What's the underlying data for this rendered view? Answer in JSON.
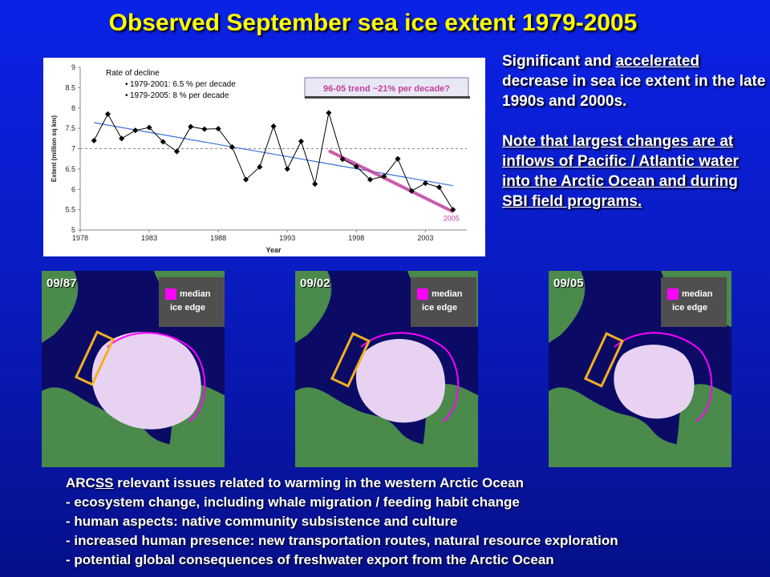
{
  "slide": {
    "title": "Observed September sea ice extent 1979-2005",
    "right_text": {
      "p1_a": "Significant and ",
      "p1_underlined": "accelerated",
      "p1_b": " decrease in sea ice extent in the late 1990s and 2000s.",
      "p2": "Note that largest changes are at inflows of Pacific / Atlantic water into the Arctic Ocean and during SBI field programs."
    },
    "maps": [
      {
        "label": "09/87",
        "legend_line1": "median",
        "legend_line2": "ice edge"
      },
      {
        "label": "09/02",
        "legend_line1": "median",
        "legend_line2": "ice edge"
      },
      {
        "label": "09/05",
        "legend_line1": "median",
        "legend_line2": "ice edge"
      }
    ],
    "bottom": {
      "heading_a": "ARC",
      "heading_ul": "SS",
      "heading_b": " relevant issues related to warming in the western Arctic Ocean",
      "items": [
        "- ecosystem change, including whale migration / feeding habit change",
        "- human aspects: native community subsistence and culture",
        "- increased human presence: new transportation routes, natural resource exploration",
        "- potential global consequences of freshwater export from the Arctic Ocean"
      ]
    },
    "colors": {
      "title": "#ffff00",
      "median_edge": "#ff00ff",
      "ice": "#e8d2f2",
      "land": "#4a8a4a",
      "ocean": "#0b0b66",
      "box": "#f2b01e"
    }
  },
  "chart_data": {
    "type": "line",
    "xlabel": "Year",
    "ylabel": "Extent (million sq km)",
    "xticks": [
      "1978",
      "1983",
      "1988",
      "1993",
      "1998",
      "2003"
    ],
    "yticks": [
      "5",
      "5.5",
      "6",
      "6.5",
      "7",
      "7.5",
      "8",
      "8.5",
      "9"
    ],
    "xlim": [
      1978,
      2006
    ],
    "ylim": [
      5,
      9
    ],
    "x": [
      1979,
      1980,
      1981,
      1982,
      1983,
      1984,
      1985,
      1986,
      1987,
      1988,
      1989,
      1990,
      1991,
      1992,
      1993,
      1994,
      1995,
      1996,
      1997,
      1998,
      1999,
      2000,
      2001,
      2002,
      2003,
      2004,
      2005
    ],
    "series": [
      {
        "values": [
          7.2,
          7.85,
          7.25,
          7.45,
          7.52,
          7.17,
          6.93,
          7.54,
          7.48,
          7.49,
          7.04,
          6.24,
          6.55,
          7.55,
          6.5,
          7.18,
          6.13,
          7.88,
          6.74,
          6.56,
          6.24,
          6.32,
          6.75,
          5.96,
          6.15,
          6.05,
          5.5
        ]
      }
    ],
    "trend_line": {
      "x": [
        1979,
        2005
      ],
      "y": [
        7.64,
        6.09
      ]
    },
    "recent_trend": {
      "x": [
        1996,
        2005
      ],
      "y": [
        6.95,
        5.45
      ]
    },
    "annotations": {
      "box_title": "Rate of decline",
      "line1": "1979-2001:  6.5 % per decade",
      "line2": "1979-2005:  8 % per decade",
      "trend_note": "96-05 trend ~21% per decade?",
      "end_label": "2005"
    }
  }
}
